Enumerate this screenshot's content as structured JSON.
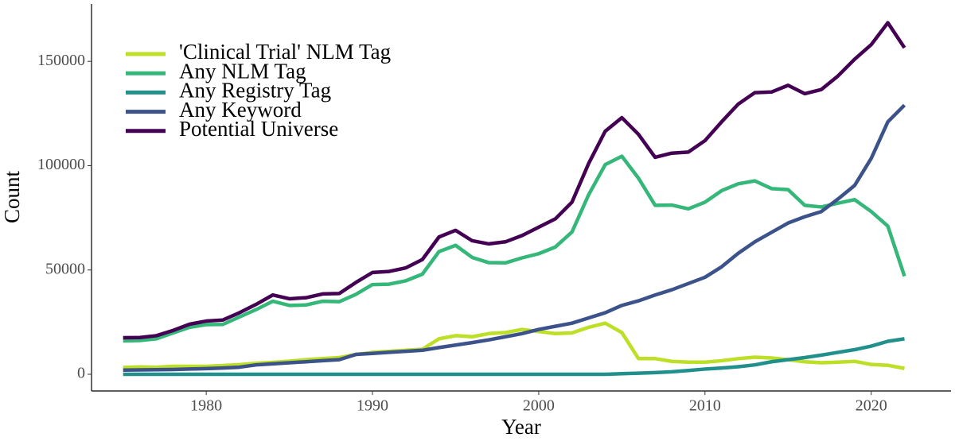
{
  "chart_data": {
    "type": "line",
    "x_label": "Year",
    "y_label": "Count",
    "x": [
      1975,
      1976,
      1977,
      1978,
      1979,
      1980,
      1981,
      1982,
      1983,
      1984,
      1985,
      1986,
      1987,
      1988,
      1989,
      1990,
      1991,
      1992,
      1993,
      1994,
      1995,
      1996,
      1997,
      1998,
      1999,
      2000,
      2001,
      2002,
      2003,
      2004,
      2005,
      2006,
      2007,
      2008,
      2009,
      2010,
      2011,
      2012,
      2013,
      2014,
      2015,
      2016,
      2017,
      2018,
      2019,
      2020,
      2021,
      2022
    ],
    "series": [
      {
        "name": "'Clinical Trial' NLM Tag",
        "color": "#bddf26",
        "values": [
          3300,
          3500,
          3400,
          3800,
          3800,
          3800,
          4200,
          4600,
          5300,
          5700,
          6300,
          7000,
          7500,
          8000,
          9500,
          10500,
          11000,
          11500,
          12000,
          17000,
          18500,
          18000,
          19500,
          20000,
          21500,
          20500,
          19500,
          19800,
          22500,
          24500,
          20000,
          7500,
          7500,
          6200,
          5800,
          5800,
          6500,
          7500,
          8200,
          7800,
          7000,
          6000,
          5500,
          5800,
          6200,
          4700,
          4300,
          2800
        ]
      },
      {
        "name": "Any NLM Tag",
        "color": "#35b779",
        "values": [
          16000,
          16200,
          17000,
          19800,
          22500,
          23800,
          23900,
          27500,
          31000,
          35000,
          33000,
          33200,
          35000,
          34800,
          38300,
          43000,
          43200,
          44800,
          48000,
          58800,
          61800,
          56000,
          53500,
          53400,
          55800,
          57800,
          61000,
          68200,
          86000,
          100500,
          104500,
          94000,
          81000,
          81100,
          79300,
          82500,
          88000,
          91300,
          92700,
          89000,
          88500,
          81000,
          80200,
          82000,
          83700,
          78000,
          71000,
          47000
        ]
      },
      {
        "name": "Any Registry Tag",
        "color": "#21908d",
        "values": [
          0,
          0,
          0,
          0,
          0,
          0,
          0,
          0,
          0,
          0,
          0,
          0,
          0,
          0,
          0,
          0,
          0,
          0,
          0,
          0,
          0,
          0,
          0,
          0,
          0,
          0,
          0,
          0,
          0,
          0,
          300,
          500,
          800,
          1200,
          1800,
          2500,
          3000,
          3600,
          4500,
          6000,
          7000,
          8000,
          9200,
          10500,
          11800,
          13500,
          15800,
          17000
        ]
      },
      {
        "name": "Any Keyword",
        "color": "#3b528b",
        "values": [
          2000,
          2100,
          2200,
          2300,
          2500,
          2700,
          3000,
          3400,
          4500,
          5000,
          5500,
          6000,
          6500,
          7000,
          9500,
          10000,
          10500,
          11000,
          11500,
          12800,
          14000,
          15200,
          16500,
          18000,
          19500,
          21500,
          23000,
          24500,
          27000,
          29500,
          33000,
          35200,
          38000,
          40500,
          43500,
          46500,
          51500,
          58000,
          63500,
          68000,
          72500,
          75500,
          78000,
          84000,
          90500,
          103500,
          121000,
          129000
        ]
      },
      {
        "name": "Potential Universe",
        "color": "#440154",
        "values": [
          17500,
          17600,
          18500,
          21000,
          24000,
          25500,
          26000,
          29500,
          33500,
          38000,
          36200,
          36700,
          38500,
          38700,
          44000,
          48800,
          49300,
          51000,
          55000,
          65800,
          69000,
          64000,
          62500,
          63500,
          66500,
          70500,
          74500,
          82500,
          101000,
          116500,
          123000,
          115000,
          104000,
          106000,
          106500,
          112000,
          121000,
          129500,
          135000,
          135300,
          138500,
          134500,
          136500,
          143000,
          151000,
          158000,
          168500,
          156500
        ]
      }
    ],
    "xlim": [
      1973.1,
      2024.8
    ],
    "xticks": [
      1980,
      1990,
      2000,
      2010,
      2020
    ],
    "ylim": [
      -8000,
      177500
    ],
    "yticks": [
      0,
      50000,
      100000,
      150000
    ],
    "grid": false,
    "legend": "top-left"
  }
}
